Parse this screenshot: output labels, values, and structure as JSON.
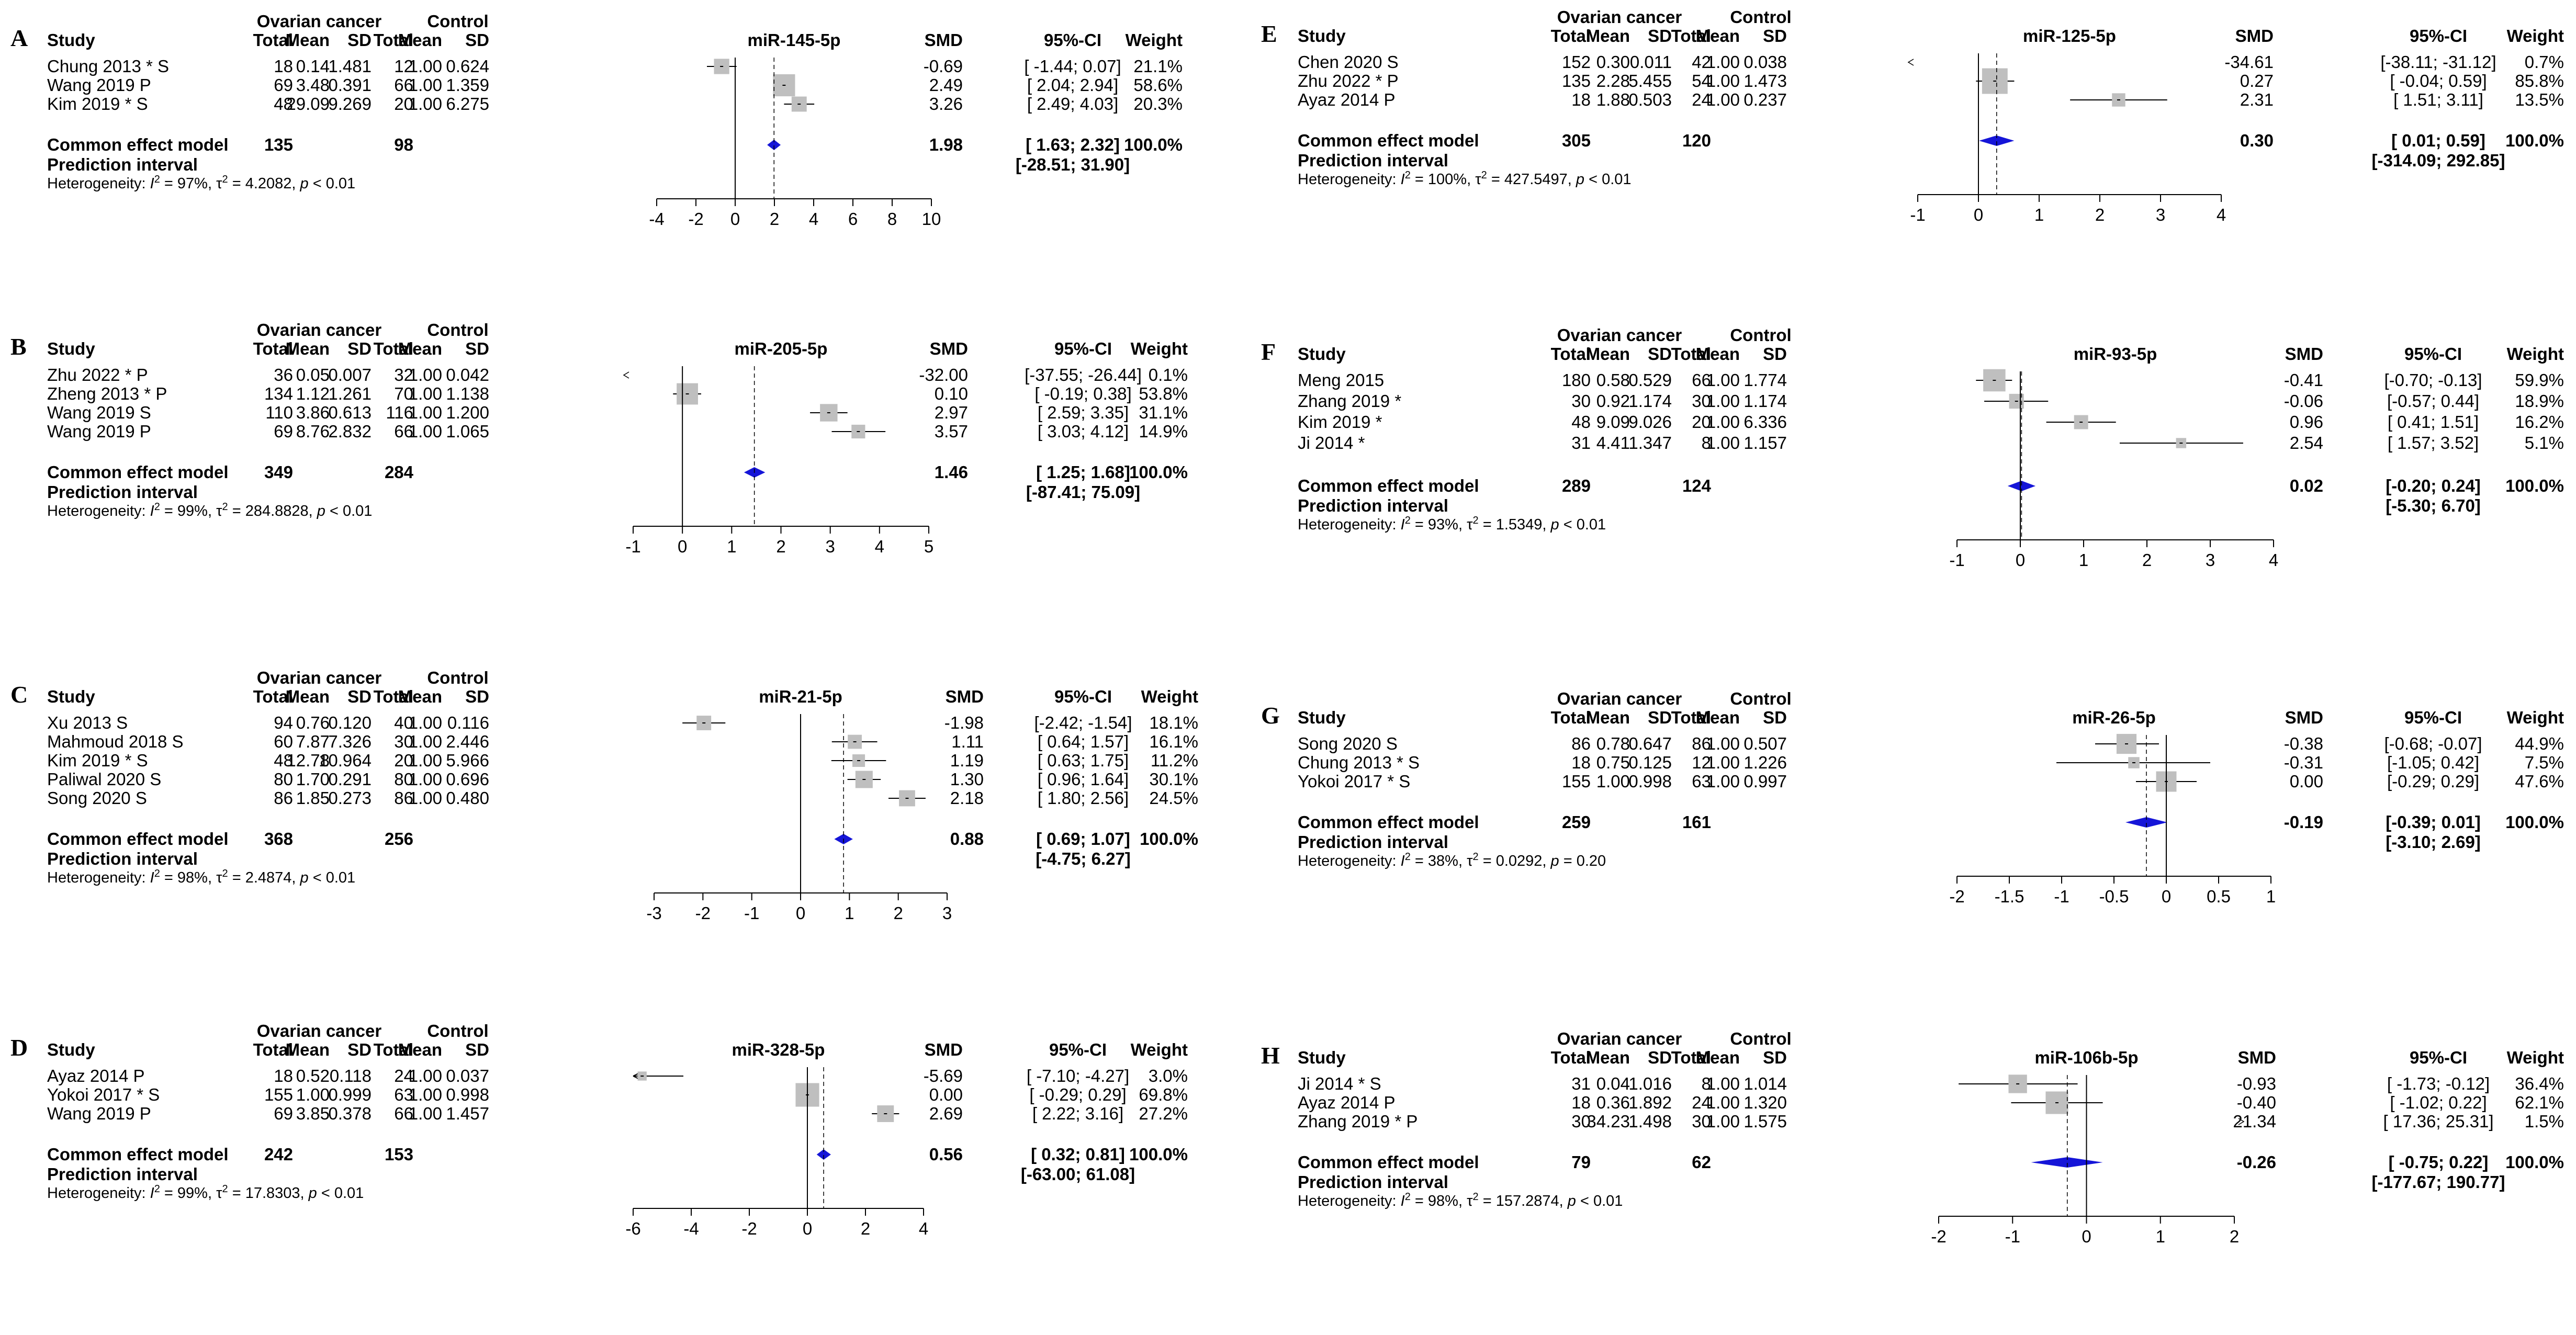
{
  "colors": {
    "box": "#bfbfbf",
    "diamond": "#1515d8",
    "line": "#000000",
    "background": "#ffffff"
  },
  "column_headers": {
    "group1": "Ovarian cancer",
    "group2": "Control",
    "study": "Study",
    "total": "Total",
    "mean": "Mean",
    "sd": "SD",
    "smd": "SMD",
    "ci": "95%-CI",
    "weight": "Weight"
  },
  "summary_labels": {
    "common": "Common effect model",
    "prediction": "Prediction interval",
    "heterogeneity_prefix": "Heterogeneity:"
  },
  "chart_data": [
    {
      "type": "forest",
      "panel": "A",
      "title": "miR-145-5p",
      "xlim": [
        -4,
        10
      ],
      "ticks": [
        -4,
        -2,
        0,
        2,
        4,
        6,
        8,
        10
      ],
      "tick_labels": [
        "-4",
        "-2",
        "0",
        "2",
        "4",
        "6",
        "8",
        "10"
      ],
      "studies": [
        {
          "name": "Chung 2013 * S",
          "t1": "18",
          "m1": "0.14",
          "s1": "1.481",
          "t2": "12",
          "m2": "1.00",
          "s2": "0.624",
          "smd": -0.69,
          "lo": -1.44,
          "hi": 0.07,
          "smd_text": "-0.69",
          "ci_text": "[ -1.44;  0.07]",
          "weight": 21.1,
          "weight_text": "21.1%"
        },
        {
          "name": "Wang 2019 P",
          "t1": "69",
          "m1": "3.48",
          "s1": "0.391",
          "t2": "66",
          "m2": "1.00",
          "s2": "1.359",
          "smd": 2.49,
          "lo": 2.04,
          "hi": 2.94,
          "smd_text": "2.49",
          "ci_text": "[  2.04;  2.94]",
          "weight": 58.6,
          "weight_text": "58.6%"
        },
        {
          "name": "Kim 2019 * S",
          "t1": "48",
          "m1": "29.09",
          "s1": "9.269",
          "t2": "20",
          "m2": "1.00",
          "s2": "6.275",
          "smd": 3.26,
          "lo": 2.49,
          "hi": 4.03,
          "smd_text": "3.26",
          "ci_text": "[  2.49;  4.03]",
          "weight": 20.3,
          "weight_text": "20.3%"
        }
      ],
      "common": {
        "total1": "135",
        "total2": "98",
        "est": 1.98,
        "lo": 1.63,
        "hi": 2.32,
        "smd_text": "1.98",
        "ci_text": "[  1.63;  2.32]",
        "weight_text": "100.0%"
      },
      "prediction_text": "[-28.51; 31.90]",
      "heterogeneity": {
        "i2": "97%",
        "tau2": "4.2082",
        "p": "< 0.01"
      }
    },
    {
      "type": "forest",
      "panel": "B",
      "title": "miR-205-5p",
      "xlim": [
        -1,
        5
      ],
      "ticks": [
        -1,
        0,
        1,
        2,
        3,
        4,
        5
      ],
      "tick_labels": [
        "-1",
        "0",
        "1",
        "2",
        "3",
        "4",
        "5"
      ],
      "studies": [
        {
          "name": "Zhu 2022 * P",
          "t1": "36",
          "m1": "0.05",
          "s1": "0.007",
          "t2": "32",
          "m2": "1.00",
          "s2": "0.042",
          "smd": -32.0,
          "lo": -37.55,
          "hi": -26.44,
          "smd_text": "-32.00",
          "ci_text": "[-37.55; -26.44]",
          "weight": 0.1,
          "weight_text": "0.1%"
        },
        {
          "name": "Zheng 2013 * P",
          "t1": "134",
          "m1": "1.12",
          "s1": "1.261",
          "t2": "70",
          "m2": "1.00",
          "s2": "1.138",
          "smd": 0.1,
          "lo": -0.19,
          "hi": 0.38,
          "smd_text": "0.10",
          "ci_text": "[ -0.19;  0.38]",
          "weight": 53.8,
          "weight_text": "53.8%"
        },
        {
          "name": "Wang 2019 S",
          "t1": "110",
          "m1": "3.86",
          "s1": "0.613",
          "t2": "116",
          "m2": "1.00",
          "s2": "1.200",
          "smd": 2.97,
          "lo": 2.59,
          "hi": 3.35,
          "smd_text": "2.97",
          "ci_text": "[  2.59;  3.35]",
          "weight": 31.1,
          "weight_text": "31.1%"
        },
        {
          "name": "Wang 2019 P",
          "t1": "69",
          "m1": "8.76",
          "s1": "2.832",
          "t2": "66",
          "m2": "1.00",
          "s2": "1.065",
          "smd": 3.57,
          "lo": 3.03,
          "hi": 4.12,
          "smd_text": "3.57",
          "ci_text": "[  3.03;  4.12]",
          "weight": 14.9,
          "weight_text": "14.9%"
        }
      ],
      "common": {
        "total1": "349",
        "total2": "284",
        "est": 1.46,
        "lo": 1.25,
        "hi": 1.68,
        "smd_text": "1.46",
        "ci_text": "[  1.25;  1.68]",
        "weight_text": "100.0%"
      },
      "prediction_text": "[-87.41; 75.09]",
      "heterogeneity": {
        "i2": "99%",
        "tau2": "284.8828",
        "p": "< 0.01"
      }
    },
    {
      "type": "forest",
      "panel": "C",
      "title": "miR-21-5p",
      "xlim": [
        -3,
        3
      ],
      "ticks": [
        -3,
        -2,
        -1,
        0,
        1,
        2,
        3
      ],
      "tick_labels": [
        "-3",
        "-2",
        "-1",
        "0",
        "1",
        "2",
        "3"
      ],
      "studies": [
        {
          "name": "Xu 2013 S",
          "t1": "94",
          "m1": "0.76",
          "s1": "0.120",
          "t2": "40",
          "m2": "1.00",
          "s2": "0.116",
          "smd": -1.98,
          "lo": -2.42,
          "hi": -1.54,
          "smd_text": "-1.98",
          "ci_text": "[-2.42; -1.54]",
          "weight": 18.1,
          "weight_text": "18.1%"
        },
        {
          "name": "Mahmoud 2018 S",
          "t1": "60",
          "m1": "7.87",
          "s1": "7.326",
          "t2": "30",
          "m2": "1.00",
          "s2": "2.446",
          "smd": 1.11,
          "lo": 0.64,
          "hi": 1.57,
          "smd_text": "1.11",
          "ci_text": "[ 0.64;  1.57]",
          "weight": 16.1,
          "weight_text": "16.1%"
        },
        {
          "name": "Kim 2019 * S",
          "t1": "48",
          "m1": "12.78",
          "s1": "10.964",
          "t2": "20",
          "m2": "1.00",
          "s2": "5.966",
          "smd": 1.19,
          "lo": 0.63,
          "hi": 1.75,
          "smd_text": "1.19",
          "ci_text": "[ 0.63;  1.75]",
          "weight": 11.2,
          "weight_text": "11.2%"
        },
        {
          "name": "Paliwal 2020 S",
          "t1": "80",
          "m1": "1.70",
          "s1": "0.291",
          "t2": "80",
          "m2": "1.00",
          "s2": "0.696",
          "smd": 1.3,
          "lo": 0.96,
          "hi": 1.64,
          "smd_text": "1.30",
          "ci_text": "[ 0.96;  1.64]",
          "weight": 30.1,
          "weight_text": "30.1%"
        },
        {
          "name": "Song 2020 S",
          "t1": "86",
          "m1": "1.85",
          "s1": "0.273",
          "t2": "86",
          "m2": "1.00",
          "s2": "0.480",
          "smd": 2.18,
          "lo": 1.8,
          "hi": 2.56,
          "smd_text": "2.18",
          "ci_text": "[ 1.80;  2.56]",
          "weight": 24.5,
          "weight_text": "24.5%"
        }
      ],
      "common": {
        "total1": "368",
        "total2": "256",
        "est": 0.88,
        "lo": 0.69,
        "hi": 1.07,
        "smd_text": "0.88",
        "ci_text": "[ 0.69;  1.07]",
        "weight_text": "100.0%"
      },
      "prediction_text": "[-4.75;  6.27]",
      "heterogeneity": {
        "i2": "98%",
        "tau2": "2.4874",
        "p": "< 0.01"
      }
    },
    {
      "type": "forest",
      "panel": "D",
      "title": "miR-328-5p",
      "xlim": [
        -6,
        4
      ],
      "ticks": [
        -6,
        -4,
        -2,
        0,
        2,
        4
      ],
      "tick_labels": [
        "-6",
        "-4",
        "-2",
        "0",
        "2",
        "4"
      ],
      "studies": [
        {
          "name": "Ayaz 2014 P",
          "t1": "18",
          "m1": "0.52",
          "s1": "0.118",
          "t2": "24",
          "m2": "1.00",
          "s2": "0.037",
          "smd": -5.69,
          "lo": -7.1,
          "hi": -4.27,
          "smd_text": "-5.69",
          "ci_text": "[ -7.10; -4.27]",
          "weight": 3.0,
          "weight_text": "3.0%"
        },
        {
          "name": "Yokoi 2017 * S",
          "t1": "155",
          "m1": "1.00",
          "s1": "0.999",
          "t2": "63",
          "m2": "1.00",
          "s2": "0.998",
          "smd": 0.0,
          "lo": -0.29,
          "hi": 0.29,
          "smd_text": "0.00",
          "ci_text": "[ -0.29;  0.29]",
          "weight": 69.8,
          "weight_text": "69.8%"
        },
        {
          "name": "Wang 2019 P",
          "t1": "69",
          "m1": "3.85",
          "s1": "0.378",
          "t2": "66",
          "m2": "1.00",
          "s2": "1.457",
          "smd": 2.69,
          "lo": 2.22,
          "hi": 3.16,
          "smd_text": "2.69",
          "ci_text": "[  2.22;  3.16]",
          "weight": 27.2,
          "weight_text": "27.2%"
        }
      ],
      "common": {
        "total1": "242",
        "total2": "153",
        "est": 0.56,
        "lo": 0.32,
        "hi": 0.81,
        "smd_text": "0.56",
        "ci_text": "[  0.32;  0.81]",
        "weight_text": "100.0%"
      },
      "prediction_text": "[-63.00; 61.08]",
      "heterogeneity": {
        "i2": "99%",
        "tau2": "17.8303",
        "p": "< 0.01"
      }
    },
    {
      "type": "forest",
      "panel": "E",
      "title": "miR-125-5p",
      "xlim": [
        -1,
        4
      ],
      "ticks": [
        -1,
        0,
        1,
        2,
        3,
        4
      ],
      "tick_labels": [
        "-1",
        "0",
        "1",
        "2",
        "3",
        "4"
      ],
      "studies": [
        {
          "name": "Chen 2020 S",
          "t1": "152",
          "m1": "0.30",
          "s1": "0.011",
          "t2": "42",
          "m2": "1.00",
          "s2": "0.038",
          "smd": -34.61,
          "lo": -38.11,
          "hi": -31.12,
          "smd_text": "-34.61",
          "ci_text": "[-38.11; -31.12]",
          "weight": 0.7,
          "weight_text": "0.7%"
        },
        {
          "name": "Zhu 2022 * P",
          "t1": "135",
          "m1": "2.28",
          "s1": "5.455",
          "t2": "54",
          "m2": "1.00",
          "s2": "1.473",
          "smd": 0.27,
          "lo": -0.04,
          "hi": 0.59,
          "smd_text": "0.27",
          "ci_text": "[  -0.04;   0.59]",
          "weight": 85.8,
          "weight_text": "85.8%"
        },
        {
          "name": "Ayaz 2014 P",
          "t1": "18",
          "m1": "1.88",
          "s1": "0.503",
          "t2": "24",
          "m2": "1.00",
          "s2": "0.237",
          "smd": 2.31,
          "lo": 1.51,
          "hi": 3.11,
          "smd_text": "2.31",
          "ci_text": "[   1.51;   3.11]",
          "weight": 13.5,
          "weight_text": "13.5%"
        }
      ],
      "common": {
        "total1": "305",
        "total2": "120",
        "est": 0.3,
        "lo": 0.01,
        "hi": 0.59,
        "smd_text": "0.30",
        "ci_text": "[   0.01;   0.59]",
        "weight_text": "100.0%"
      },
      "prediction_text": "[-314.09; 292.85]",
      "heterogeneity": {
        "i2": "100%",
        "tau2": "427.5497",
        "p": "< 0.01"
      }
    },
    {
      "type": "forest",
      "panel": "F",
      "title": "miR-93-5p",
      "xlim": [
        -1,
        4
      ],
      "ticks": [
        -1,
        0,
        1,
        2,
        3,
        4
      ],
      "tick_labels": [
        "-1",
        "0",
        "1",
        "2",
        "3",
        "4"
      ],
      "studies": [
        {
          "name": "Meng 2015",
          "t1": "180",
          "m1": "0.58",
          "s1": "0.529",
          "t2": "66",
          "m2": "1.00",
          "s2": "1.774",
          "smd": -0.41,
          "lo": -0.7,
          "hi": -0.13,
          "smd_text": "-0.41",
          "ci_text": "[-0.70; -0.13]",
          "weight": 59.9,
          "weight_text": "59.9%"
        },
        {
          "name": "Zhang 2019 *",
          "t1": "30",
          "m1": "0.92",
          "s1": "1.174",
          "t2": "30",
          "m2": "1.00",
          "s2": "1.174",
          "smd": -0.06,
          "lo": -0.57,
          "hi": 0.44,
          "smd_text": "-0.06",
          "ci_text": "[-0.57;  0.44]",
          "weight": 18.9,
          "weight_text": "18.9%"
        },
        {
          "name": "Kim 2019 *",
          "t1": "48",
          "m1": "9.09",
          "s1": "9.026",
          "t2": "20",
          "m2": "1.00",
          "s2": "6.336",
          "smd": 0.96,
          "lo": 0.41,
          "hi": 1.51,
          "smd_text": "0.96",
          "ci_text": "[ 0.41;  1.51]",
          "weight": 16.2,
          "weight_text": "16.2%"
        },
        {
          "name": "Ji 2014 *",
          "t1": "31",
          "m1": "4.41",
          "s1": "1.347",
          "t2": "8",
          "m2": "1.00",
          "s2": "1.157",
          "smd": 2.54,
          "lo": 1.57,
          "hi": 3.52,
          "smd_text": "2.54",
          "ci_text": "[ 1.57;  3.52]",
          "weight": 5.1,
          "weight_text": "5.1%"
        }
      ],
      "common": {
        "total1": "289",
        "total2": "124",
        "est": 0.02,
        "lo": -0.2,
        "hi": 0.24,
        "smd_text": "0.02",
        "ci_text": "[-0.20;  0.24]",
        "weight_text": "100.0%"
      },
      "prediction_text": "[-5.30;  6.70]",
      "heterogeneity": {
        "i2": "93%",
        "tau2": "1.5349",
        "p": "< 0.01"
      }
    },
    {
      "type": "forest",
      "panel": "G",
      "title": "miR-26-5p",
      "xlim": [
        -2,
        1
      ],
      "ticks": [
        -2,
        -1.5,
        -1,
        -0.5,
        0,
        0.5,
        1
      ],
      "tick_labels": [
        "-2",
        "-1.5",
        "-1",
        "-0.5",
        "0",
        "0.5",
        "1"
      ],
      "studies": [
        {
          "name": "Song 2020 S",
          "t1": "86",
          "m1": "0.78",
          "s1": "0.647",
          "t2": "86",
          "m2": "1.00",
          "s2": "0.507",
          "smd": -0.38,
          "lo": -0.68,
          "hi": -0.07,
          "smd_text": "-0.38",
          "ci_text": "[-0.68; -0.07]",
          "weight": 44.9,
          "weight_text": "44.9%"
        },
        {
          "name": "Chung 2013 * S",
          "t1": "18",
          "m1": "0.75",
          "s1": "0.125",
          "t2": "12",
          "m2": "1.00",
          "s2": "1.226",
          "smd": -0.31,
          "lo": -1.05,
          "hi": 0.42,
          "smd_text": "-0.31",
          "ci_text": "[-1.05;  0.42]",
          "weight": 7.5,
          "weight_text": "7.5%"
        },
        {
          "name": "Yokoi 2017 * S",
          "t1": "155",
          "m1": "1.00",
          "s1": "0.998",
          "t2": "63",
          "m2": "1.00",
          "s2": "0.997",
          "smd": 0.0,
          "lo": -0.29,
          "hi": 0.29,
          "smd_text": "0.00",
          "ci_text": "[-0.29;  0.29]",
          "weight": 47.6,
          "weight_text": "47.6%"
        }
      ],
      "common": {
        "total1": "259",
        "total2": "161",
        "est": -0.19,
        "lo": -0.39,
        "hi": 0.01,
        "smd_text": "-0.19",
        "ci_text": "[-0.39;  0.01]",
        "weight_text": "100.0%"
      },
      "prediction_text": "[-3.10;  2.69]",
      "heterogeneity": {
        "i2": "38%",
        "tau2": "0.0292",
        "p": "= 0.20"
      }
    },
    {
      "type": "forest",
      "panel": "H",
      "title": "miR-106b-5p",
      "xlim": [
        -2,
        2
      ],
      "ticks": [
        -2,
        -1,
        0,
        1,
        2
      ],
      "tick_labels": [
        "-2",
        "-1",
        "0",
        "1",
        "2"
      ],
      "studies": [
        {
          "name": "Ji 2014 * S",
          "t1": "31",
          "m1": "0.04",
          "s1": "1.016",
          "t2": "8",
          "m2": "1.00",
          "s2": "1.014",
          "smd": -0.93,
          "lo": -1.73,
          "hi": -0.12,
          "smd_text": "-0.93",
          "ci_text": "[  -1.73;  -0.12]",
          "weight": 36.4,
          "weight_text": "36.4%"
        },
        {
          "name": "Ayaz 2014 P",
          "t1": "18",
          "m1": "0.36",
          "s1": "1.892",
          "t2": "24",
          "m2": "1.00",
          "s2": "1.320",
          "smd": -0.4,
          "lo": -1.02,
          "hi": 0.22,
          "smd_text": "-0.40",
          "ci_text": "[  -1.02;   0.22]",
          "weight": 62.1,
          "weight_text": "62.1%"
        },
        {
          "name": "Zhang 2019 * P",
          "t1": "30",
          "m1": "34.23",
          "s1": "1.498",
          "t2": "30",
          "m2": "1.00",
          "s2": "1.575",
          "smd": 21.34,
          "lo": 17.36,
          "hi": 25.31,
          "smd_text": "21.34",
          "ci_text": "[ 17.36;  25.31]",
          "weight": 1.5,
          "weight_text": "1.5%"
        }
      ],
      "common": {
        "total1": "79",
        "total2": "62",
        "est": -0.26,
        "lo": -0.75,
        "hi": 0.22,
        "smd_text": "-0.26",
        "ci_text": "[  -0.75;   0.22]",
        "weight_text": "100.0%"
      },
      "prediction_text": "[-177.67; 190.77]",
      "heterogeneity": {
        "i2": "98%",
        "tau2": "157.2874",
        "p": "< 0.01"
      }
    }
  ]
}
